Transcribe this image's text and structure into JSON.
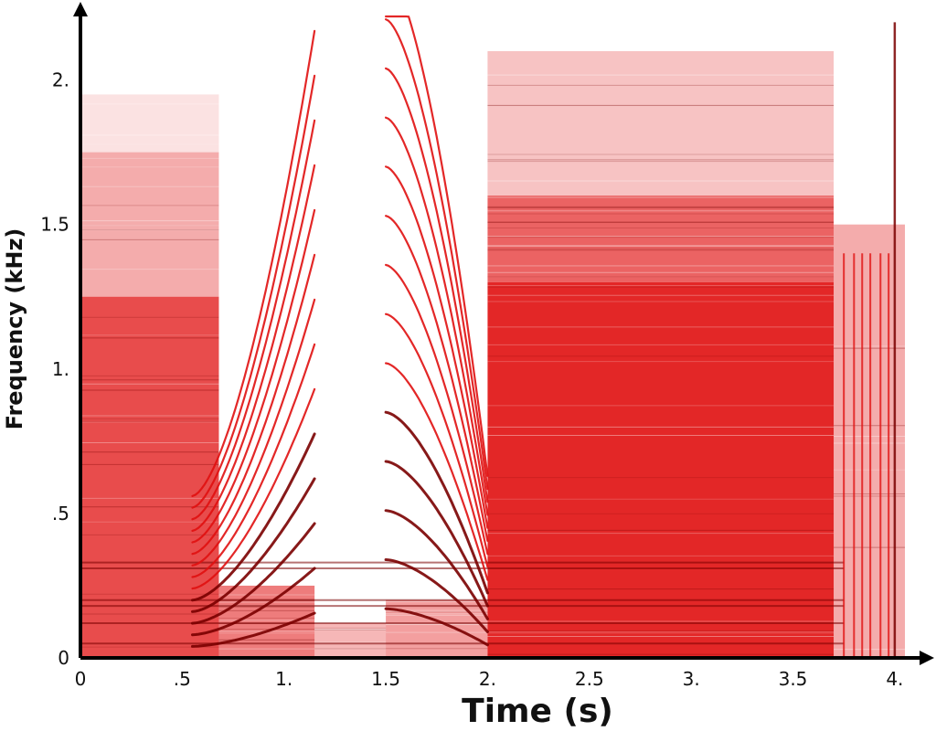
{
  "chart_data": {
    "type": "heatmap",
    "title": "",
    "xlabel": "Time (s)",
    "ylabel": "Frequency (kHz)",
    "xlim": [
      0,
      4.05
    ],
    "ylim": [
      0,
      2.22
    ],
    "x_ticks": [
      {
        "value": 0,
        "label": "0"
      },
      {
        "value": 0.5,
        "label": ".5"
      },
      {
        "value": 1.0,
        "label": "1."
      },
      {
        "value": 1.5,
        "label": "1.5"
      },
      {
        "value": 2.0,
        "label": "2."
      },
      {
        "value": 2.5,
        "label": "2.5"
      },
      {
        "value": 3.0,
        "label": "3."
      },
      {
        "value": 3.5,
        "label": "3.5"
      },
      {
        "value": 4.0,
        "label": "4."
      }
    ],
    "y_ticks": [
      {
        "value": 0,
        "label": "0"
      },
      {
        "value": 0.5,
        "label": ".5"
      },
      {
        "value": 1.0,
        "label": "1."
      },
      {
        "value": 1.5,
        "label": "1.5"
      },
      {
        "value": 2.0,
        "label": "2."
      }
    ],
    "grid": false,
    "legend": "none",
    "colors": {
      "intensity": "#e01010",
      "dark_line": "#7a0000",
      "axis": "#000000"
    },
    "energy_regions": [
      {
        "t0": 0.0,
        "t1": 0.68,
        "f0": 0.0,
        "f1": 1.25,
        "intensity": 0.75
      },
      {
        "t0": 0.0,
        "t1": 0.68,
        "f0": 1.25,
        "f1": 1.75,
        "intensity": 0.35
      },
      {
        "t0": 0.0,
        "t1": 0.68,
        "f0": 1.75,
        "f1": 1.95,
        "intensity": 0.12
      },
      {
        "t0": 0.68,
        "t1": 1.15,
        "f0": 0.0,
        "f1": 0.25,
        "intensity": 0.55
      },
      {
        "t0": 1.15,
        "t1": 1.5,
        "f0": 0.0,
        "f1": 0.12,
        "intensity": 0.3
      },
      {
        "t0": 1.5,
        "t1": 2.0,
        "f0": 0.0,
        "f1": 0.2,
        "intensity": 0.4
      },
      {
        "t0": 2.0,
        "t1": 3.7,
        "f0": 0.0,
        "f1": 1.3,
        "intensity": 0.9
      },
      {
        "t0": 2.0,
        "t1": 3.7,
        "f0": 1.3,
        "f1": 1.6,
        "intensity": 0.65
      },
      {
        "t0": 2.0,
        "t1": 3.7,
        "f0": 1.6,
        "f1": 2.1,
        "intensity": 0.25
      },
      {
        "t0": 3.7,
        "t1": 4.05,
        "f0": 0.0,
        "f1": 1.5,
        "intensity": 0.35
      }
    ],
    "harmonic_sweeps": [
      {
        "name": "descending",
        "t_start": 0.55,
        "t_end": 1.15,
        "f0_start": 0.04,
        "f0_end": 0.155,
        "harmonics": 14
      },
      {
        "name": "ascending",
        "t_start": 1.5,
        "t_end": 2.0,
        "f0_start": 0.17,
        "f0_end": 0.045,
        "harmonics": 14
      }
    ],
    "vertical_transients": [
      3.75,
      3.8,
      3.84,
      3.88,
      3.93,
      3.97
    ],
    "dark_horizontal_bands": [
      0.05,
      0.12,
      0.18,
      0.2,
      0.31,
      0.33
    ]
  }
}
